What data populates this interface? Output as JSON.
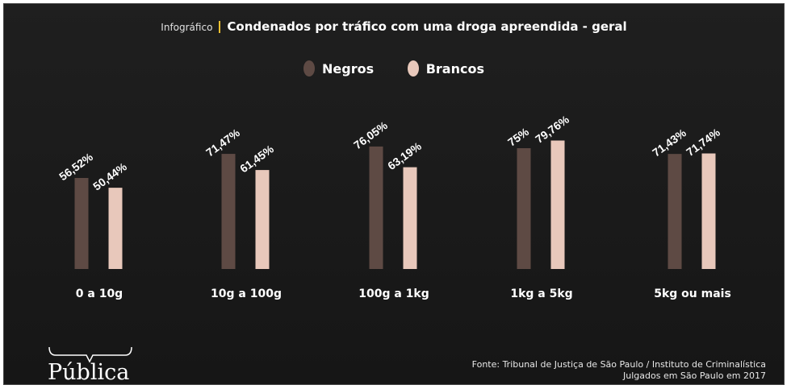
{
  "header": {
    "kicker": "Infográfico",
    "title": "Condenados por tráfico com uma droga apreendida - geral"
  },
  "colors": {
    "negros": "#5e4a44",
    "brancos": "#e8c8bb",
    "accent": "#f0c030",
    "background": "#1b1b1b"
  },
  "chart_data": {
    "type": "bar",
    "title": "Condenados por tráfico com uma droga apreendida - geral",
    "categories": [
      "0 a 10g",
      "10g a 100g",
      "100g a 1kg",
      "1kg a 5kg",
      "5kg ou mais"
    ],
    "series": [
      {
        "name": "Negros",
        "values": [
          56.52,
          71.47,
          76.05,
          75,
          71.43
        ],
        "labels": [
          "56,52%",
          "71,47%",
          "76,05%",
          "75%",
          "71,43%"
        ]
      },
      {
        "name": "Brancos",
        "values": [
          50.44,
          61.45,
          63.19,
          79.76,
          71.74
        ],
        "labels": [
          "50,44%",
          "61,45%",
          "63,19%",
          "79,76%",
          "71,74%"
        ]
      }
    ],
    "ylim": [
      0,
      100
    ],
    "legend": "top-center",
    "grid": false
  },
  "source": {
    "line1": "Fonte: Tribunal de Justiça de São Paulo / Instituto de Criminalística",
    "line2": "Julgados em São Paulo em 2017"
  },
  "logo": {
    "text": "Pública"
  }
}
